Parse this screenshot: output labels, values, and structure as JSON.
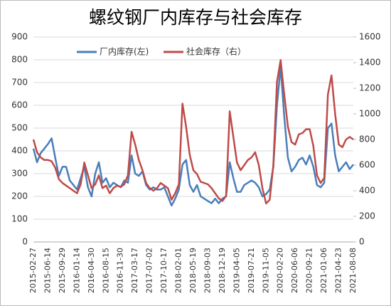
{
  "chart_data": {
    "type": "line",
    "title": "螺纹钢厂内库存与社会库存",
    "categories": [
      "2015-02-27",
      null,
      null,
      null,
      "2015-06-14",
      null,
      null,
      null,
      "2015-09-29",
      null,
      null,
      null,
      "2016-01-14",
      null,
      null,
      null,
      "2016-04-30",
      null,
      null,
      null,
      "2016-08-15",
      null,
      null,
      null,
      "2016-11-30",
      null,
      null,
      null,
      "2017-03-17",
      null,
      null,
      null,
      "2017-07-02",
      null,
      null,
      null,
      "2017-10-17",
      null,
      null,
      null,
      "2018-02-01",
      null,
      null,
      null,
      "2018-05-19",
      null,
      null,
      null,
      "2018-09-03",
      null,
      null,
      null,
      "2018-12-19",
      null,
      null,
      null,
      "2019-04-05",
      null,
      null,
      null,
      "2019-07-21",
      null,
      null,
      null,
      "2019-11-05",
      null,
      null,
      null,
      "2020-02-20",
      null,
      null,
      null,
      "2020-06-06",
      null,
      null,
      null,
      "2020-09-21",
      null,
      null,
      null,
      "2021-01-06",
      null,
      null,
      null,
      "2021-04-23",
      null,
      null,
      null,
      "2021-08-08"
    ],
    "series": [
      {
        "name": "厂内库存(左)",
        "color": "#4a7ebb",
        "axis": "y",
        "values": [
          410,
          350,
          390,
          410,
          430,
          455,
          370,
          290,
          330,
          330,
          270,
          250,
          230,
          280,
          330,
          240,
          200,
          300,
          350,
          260,
          280,
          240,
          260,
          250,
          240,
          270,
          260,
          380,
          300,
          290,
          310,
          250,
          230,
          240,
          230,
          230,
          240,
          200,
          160,
          190,
          230,
          340,
          360,
          250,
          220,
          250,
          200,
          190,
          180,
          170,
          190,
          170,
          190,
          200,
          350,
          280,
          220,
          220,
          250,
          260,
          270,
          260,
          240,
          200,
          210,
          230,
          330,
          600,
          770,
          550,
          370,
          310,
          330,
          360,
          370,
          340,
          380,
          330,
          250,
          240,
          260,
          500,
          520,
          380,
          310,
          330,
          350,
          320,
          340
        ]
      },
      {
        "name": "社会库存（右）",
        "color": "#be4b48",
        "axis": "y2",
        "values": [
          800,
          700,
          660,
          640,
          640,
          630,
          580,
          490,
          460,
          440,
          420,
          400,
          380,
          450,
          620,
          520,
          420,
          450,
          520,
          420,
          440,
          380,
          420,
          440,
          430,
          450,
          520,
          860,
          760,
          640,
          560,
          460,
          420,
          400,
          420,
          460,
          440,
          420,
          330,
          380,
          450,
          1080,
          900,
          680,
          560,
          530,
          470,
          460,
          450,
          420,
          380,
          340,
          320,
          360,
          1020,
          820,
          620,
          560,
          600,
          640,
          660,
          700,
          600,
          420,
          300,
          330,
          600,
          1250,
          1420,
          1150,
          900,
          780,
          760,
          840,
          850,
          880,
          880,
          750,
          520,
          460,
          500,
          1150,
          1300,
          1000,
          760,
          740,
          800,
          820,
          800
        ]
      }
    ],
    "ylim": [
      0,
      900
    ],
    "yticks": [
      0,
      100,
      200,
      300,
      400,
      500,
      600,
      700,
      800,
      900
    ],
    "y2lim": [
      0,
      1600
    ],
    "y2ticks": [
      0,
      200,
      400,
      600,
      800,
      1000,
      1200,
      1400,
      1600
    ],
    "grid": true
  }
}
